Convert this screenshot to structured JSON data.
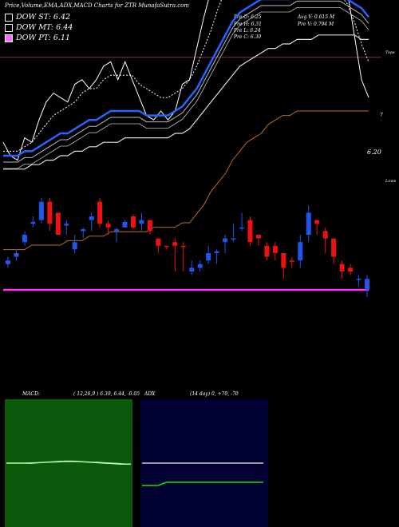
{
  "header": {
    "title": "Price,Volume,EMA,ADX,MACD Charts for ZTR MunafaSutra.com"
  },
  "legend": [
    {
      "label": "DOW ST: 6.42",
      "color": "#ffffff"
    },
    {
      "label": "DOW MT: 6.44",
      "color": "#ffffff"
    },
    {
      "label": "DOW PT: 6.11",
      "color": "#ff66ff"
    }
  ],
  "ohlc": {
    "open": "Pre O: 6.25",
    "high": "Pre H: 6.31",
    "low": "Pre L: 6.24",
    "close": "Pre C: 6.30",
    "avg_volume": "Avg V: 0.615 M",
    "prev_volume": "Pre V: 0.794 M"
  },
  "price_labels": {
    "last": "6.20",
    "seven": "7"
  },
  "markers": {
    "tops": "Tops",
    "lows": "Lows"
  },
  "macd": {
    "label": "MACD:",
    "params": "( 12,26,9 ) 6.39, 6.44, -0.05"
  },
  "adx": {
    "label": "ADX",
    "params": "(14 day) 0, +70, -70"
  },
  "chart_data": [
    {
      "type": "line",
      "name": "price-ema",
      "x_count": 52,
      "series": [
        {
          "values": [
            6.28,
            6.25,
            6.24,
            6.29,
            6.28,
            6.33,
            6.37,
            6.39,
            6.38,
            6.37,
            6.41,
            6.42,
            6.4,
            6.42,
            6.45,
            6.46,
            6.42,
            6.46,
            6.42,
            6.38,
            6.34,
            6.33,
            6.35,
            6.33,
            6.35,
            6.41,
            6.42,
            6.49,
            6.56,
            6.62,
            6.66,
            6.74,
            6.76,
            6.73,
            6.78,
            6.71,
            6.68,
            6.63,
            6.62,
            6.66,
            6.61,
            6.63,
            6.64,
            6.68,
            6.62,
            6.6,
            6.66,
            6.67,
            6.62,
            6.52,
            6.42,
            6.38
          ]
        },
        {
          "values": [
            6.26,
            6.26,
            6.26,
            6.27,
            6.28,
            6.3,
            6.32,
            6.34,
            6.35,
            6.36,
            6.37,
            6.39,
            6.4,
            6.4,
            6.42,
            6.43,
            6.43,
            6.43,
            6.43,
            6.41,
            6.4,
            6.39,
            6.38,
            6.38,
            6.39,
            6.4,
            6.42,
            6.45,
            6.49,
            6.53,
            6.58,
            6.62,
            6.65,
            6.67,
            6.68,
            6.68,
            6.67,
            6.66,
            6.65,
            6.64,
            6.64,
            6.64,
            6.64,
            6.64,
            6.63,
            6.62,
            6.62,
            6.61,
            6.59,
            6.55,
            6.5,
            6.46
          ]
        },
        {
          "values": [
            6.25,
            6.25,
            6.25,
            6.26,
            6.26,
            6.27,
            6.28,
            6.29,
            6.3,
            6.3,
            6.31,
            6.32,
            6.33,
            6.33,
            6.34,
            6.35,
            6.35,
            6.35,
            6.35,
            6.35,
            6.34,
            6.34,
            6.34,
            6.34,
            6.35,
            6.36,
            6.38,
            6.4,
            6.43,
            6.46,
            6.49,
            6.52,
            6.55,
            6.57,
            6.58,
            6.59,
            6.6,
            6.6,
            6.6,
            6.6,
            6.6,
            6.61,
            6.61,
            6.61,
            6.61,
            6.61,
            6.61,
            6.61,
            6.6,
            6.59,
            6.58,
            6.56
          ]
        },
        {
          "values": [
            6.22,
            6.22,
            6.22,
            6.22,
            6.23,
            6.23,
            6.24,
            6.24,
            6.25,
            6.25,
            6.26,
            6.26,
            6.27,
            6.27,
            6.28,
            6.28,
            6.28,
            6.29,
            6.29,
            6.29,
            6.29,
            6.29,
            6.29,
            6.29,
            6.3,
            6.3,
            6.31,
            6.33,
            6.35,
            6.37,
            6.39,
            6.41,
            6.43,
            6.45,
            6.46,
            6.47,
            6.48,
            6.49,
            6.49,
            6.5,
            6.5,
            6.51,
            6.51,
            6.51,
            6.52,
            6.52,
            6.52,
            6.52,
            6.52,
            6.52,
            6.51,
            6.51
          ]
        },
        {
          "values": [
            6.04,
            6.04,
            6.04,
            6.04,
            6.05,
            6.05,
            6.05,
            6.05,
            6.05,
            6.06,
            6.06,
            6.06,
            6.07,
            6.07,
            6.07,
            6.08,
            6.08,
            6.08,
            6.08,
            6.08,
            6.08,
            6.09,
            6.09,
            6.09,
            6.09,
            6.1,
            6.1,
            6.12,
            6.14,
            6.17,
            6.19,
            6.21,
            6.24,
            6.26,
            6.28,
            6.29,
            6.3,
            6.32,
            6.33,
            6.34,
            6.34,
            6.35,
            6.35,
            6.35,
            6.35,
            6.35,
            6.35,
            6.35,
            6.35,
            6.35,
            6.35,
            6.35
          ]
        },
        {
          "values": [
            5.95,
            5.95,
            5.95,
            5.95,
            5.95,
            5.95,
            5.95,
            5.95,
            5.95,
            5.95,
            5.95,
            5.95,
            5.95,
            5.95,
            5.95,
            5.95,
            5.95,
            5.95,
            5.95,
            5.95,
            5.95,
            5.95,
            5.95,
            5.95,
            5.95,
            5.95,
            5.95,
            5.95,
            5.95,
            5.95,
            5.95,
            5.95,
            5.95,
            5.95,
            5.95,
            5.95,
            5.95,
            5.95,
            5.95,
            5.95,
            5.95,
            5.95,
            5.95,
            5.95,
            5.95,
            5.95,
            5.95,
            5.95,
            5.95,
            5.95,
            5.95,
            5.95
          ]
        }
      ]
    },
    {
      "type": "bar",
      "name": "candles",
      "candles": [
        {
          "o": 6.25,
          "h": 6.26,
          "l": 6.23,
          "c": 6.24,
          "u": true
        },
        {
          "o": 6.26,
          "h": 6.28,
          "l": 6.25,
          "c": 6.27,
          "u": true
        },
        {
          "o": 6.3,
          "h": 6.33,
          "l": 6.29,
          "c": 6.32,
          "u": true
        },
        {
          "o": 6.35,
          "h": 6.37,
          "l": 6.34,
          "c": 6.355,
          "u": true
        },
        {
          "o": 6.36,
          "h": 6.42,
          "l": 6.35,
          "c": 6.41,
          "u": true
        },
        {
          "o": 6.41,
          "h": 6.42,
          "l": 6.33,
          "c": 6.35,
          "u": false
        },
        {
          "o": 6.38,
          "h": 6.38,
          "l": 6.32,
          "c": 6.32,
          "u": false
        },
        {
          "o": 6.35,
          "h": 6.36,
          "l": 6.32,
          "c": 6.345,
          "u": true
        },
        {
          "o": 6.28,
          "h": 6.32,
          "l": 6.27,
          "c": 6.3,
          "u": true
        },
        {
          "o": 6.33,
          "h": 6.34,
          "l": 6.31,
          "c": 6.335,
          "u": true
        },
        {
          "o": 6.36,
          "h": 6.38,
          "l": 6.33,
          "c": 6.37,
          "u": true
        },
        {
          "o": 6.41,
          "h": 6.42,
          "l": 6.34,
          "c": 6.35,
          "u": false
        },
        {
          "o": 6.35,
          "h": 6.36,
          "l": 6.32,
          "c": 6.34,
          "u": false
        },
        {
          "o": 6.33,
          "h": 6.34,
          "l": 6.3,
          "c": 6.335,
          "u": true
        },
        {
          "o": 6.34,
          "h": 6.36,
          "l": 6.34,
          "c": 6.355,
          "u": true
        },
        {
          "o": 6.37,
          "h": 6.375,
          "l": 6.335,
          "c": 6.34,
          "u": false
        },
        {
          "o": 6.35,
          "h": 6.38,
          "l": 6.33,
          "c": 6.36,
          "u": true
        },
        {
          "o": 6.36,
          "h": 6.36,
          "l": 6.32,
          "c": 6.33,
          "u": false
        },
        {
          "o": 6.31,
          "h": 6.31,
          "l": 6.27,
          "c": 6.29,
          "u": false
        },
        {
          "o": 6.29,
          "h": 6.29,
          "l": 6.28,
          "c": 6.29,
          "u": false
        },
        {
          "o": 6.3,
          "h": 6.31,
          "l": 6.22,
          "c": 6.29,
          "u": false
        },
        {
          "o": 6.29,
          "h": 6.3,
          "l": 6.22,
          "c": 6.29,
          "u": false
        },
        {
          "o": 6.22,
          "h": 6.25,
          "l": 6.21,
          "c": 6.23,
          "u": true
        },
        {
          "o": 6.23,
          "h": 6.25,
          "l": 6.22,
          "c": 6.24,
          "u": true
        },
        {
          "o": 6.25,
          "h": 6.29,
          "l": 6.24,
          "c": 6.27,
          "u": true
        },
        {
          "o": 6.27,
          "h": 6.28,
          "l": 6.24,
          "c": 6.275,
          "u": true
        },
        {
          "o": 6.3,
          "h": 6.32,
          "l": 6.27,
          "c": 6.31,
          "u": true
        },
        {
          "o": 6.31,
          "h": 6.35,
          "l": 6.3,
          "c": 6.31,
          "u": true
        },
        {
          "o": 6.34,
          "h": 6.38,
          "l": 6.33,
          "c": 6.34,
          "u": true
        },
        {
          "o": 6.36,
          "h": 6.37,
          "l": 6.29,
          "c": 6.3,
          "u": false
        },
        {
          "o": 6.32,
          "h": 6.32,
          "l": 6.29,
          "c": 6.31,
          "u": false
        },
        {
          "o": 6.29,
          "h": 6.3,
          "l": 6.25,
          "c": 6.26,
          "u": false
        },
        {
          "o": 6.29,
          "h": 6.3,
          "l": 6.25,
          "c": 6.27,
          "u": false
        },
        {
          "o": 6.27,
          "h": 6.27,
          "l": 6.2,
          "c": 6.23,
          "u": false
        },
        {
          "o": 6.25,
          "h": 6.26,
          "l": 6.23,
          "c": 6.25,
          "u": false
        },
        {
          "o": 6.3,
          "h": 6.32,
          "l": 6.23,
          "c": 6.25,
          "u": true
        },
        {
          "o": 6.32,
          "h": 6.4,
          "l": 6.3,
          "c": 6.38,
          "u": true
        },
        {
          "o": 6.36,
          "h": 6.36,
          "l": 6.32,
          "c": 6.35,
          "u": false
        },
        {
          "o": 6.33,
          "h": 6.34,
          "l": 6.27,
          "c": 6.31,
          "u": false
        },
        {
          "o": 6.31,
          "h": 6.31,
          "l": 6.24,
          "c": 6.26,
          "u": false
        },
        {
          "o": 6.24,
          "h": 6.25,
          "l": 6.2,
          "c": 6.22,
          "u": false
        },
        {
          "o": 6.23,
          "h": 6.24,
          "l": 6.21,
          "c": 6.22,
          "u": false
        },
        {
          "o": 6.2,
          "h": 6.21,
          "l": 6.18,
          "c": 6.2,
          "u": true
        },
        {
          "o": 6.17,
          "h": 6.21,
          "l": 6.15,
          "c": 6.2,
          "u": true
        }
      ]
    },
    {
      "type": "line",
      "name": "macd",
      "series": [
        {
          "values": [
            0.0,
            0.0,
            0.0,
            0.0,
            0.01,
            0.02,
            0.03,
            0.04,
            0.04,
            0.03,
            0.02,
            0.01,
            0.0,
            -0.01,
            -0.02,
            -0.02
          ]
        },
        {
          "values": [
            0.0,
            0.0,
            0.0,
            0.01,
            0.01,
            0.02,
            0.02,
            0.03,
            0.03,
            0.03,
            0.02,
            0.02,
            0.01,
            0.0,
            -0.01,
            -0.02
          ]
        }
      ]
    },
    {
      "type": "line",
      "name": "adx",
      "series": [
        {
          "values": [
            0,
            0,
            0,
            0,
            0,
            0,
            0,
            0,
            0,
            0,
            0,
            0,
            0,
            0,
            0,
            0
          ]
        },
        {
          "values": [
            -70,
            -70,
            -70,
            -60,
            -60,
            -60,
            -60,
            -60,
            -60,
            -60,
            -60,
            -60,
            -60,
            -60,
            -60,
            -60
          ]
        }
      ]
    }
  ],
  "colors": {
    "bull": "#2255ee",
    "bear": "#ee1111",
    "pink": "#ff33ff",
    "macd_bg": "#0b5a0b",
    "adx_bg": "#000033",
    "hline": "#8b3030"
  }
}
